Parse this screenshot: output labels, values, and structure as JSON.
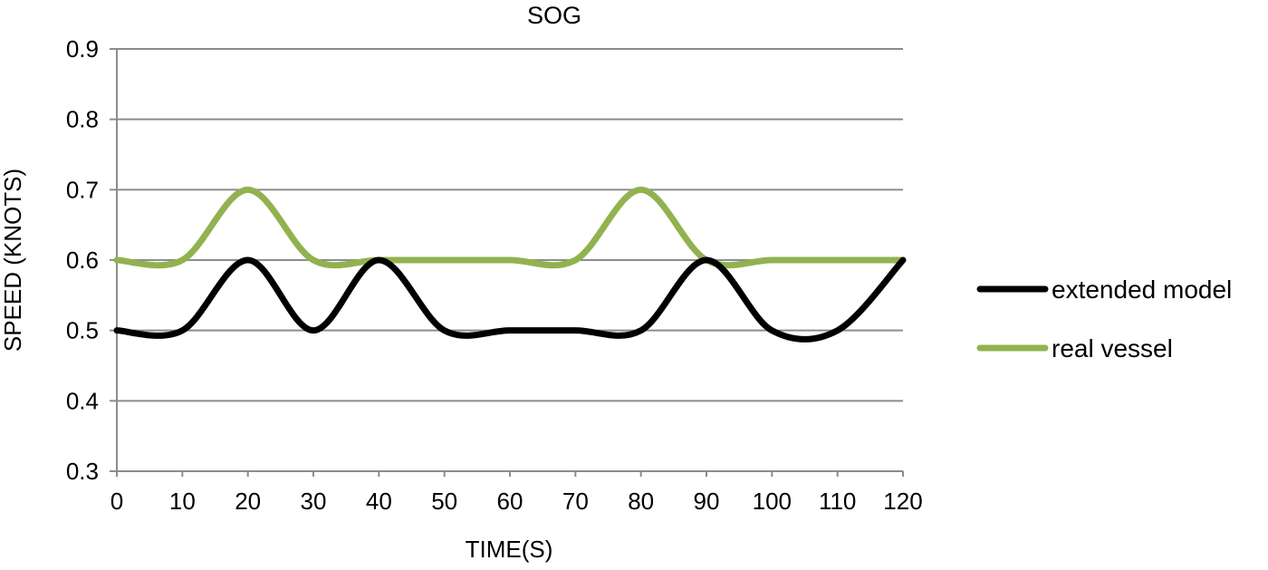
{
  "chart_data": {
    "type": "line",
    "title": "SOG",
    "xlabel": "TIME(S)",
    "ylabel": "SPEED (KNOTS)",
    "x": [
      0,
      10,
      20,
      30,
      40,
      50,
      60,
      70,
      80,
      90,
      100,
      110,
      120
    ],
    "xticks": [
      "0",
      "10",
      "20",
      "30",
      "40",
      "50",
      "60",
      "70",
      "80",
      "90",
      "100",
      "110",
      "120"
    ],
    "yticks": [
      "0.3",
      "0.4",
      "0.5",
      "0.6",
      "0.7",
      "0.8",
      "0.9"
    ],
    "xlim": [
      0,
      120
    ],
    "ylim": [
      0.3,
      0.9
    ],
    "grid": true,
    "legend_position": "right",
    "series": [
      {
        "name": "extended model",
        "color": "#000000",
        "values": [
          0.5,
          0.5,
          0.6,
          0.5,
          0.6,
          0.5,
          0.5,
          0.5,
          0.5,
          0.6,
          0.5,
          0.5,
          0.6
        ]
      },
      {
        "name": "real vessel",
        "color": "#92b250",
        "values": [
          0.6,
          0.6,
          0.7,
          0.6,
          0.6,
          0.6,
          0.6,
          0.6,
          0.7,
          0.6,
          0.6,
          0.6,
          0.6
        ]
      }
    ]
  }
}
